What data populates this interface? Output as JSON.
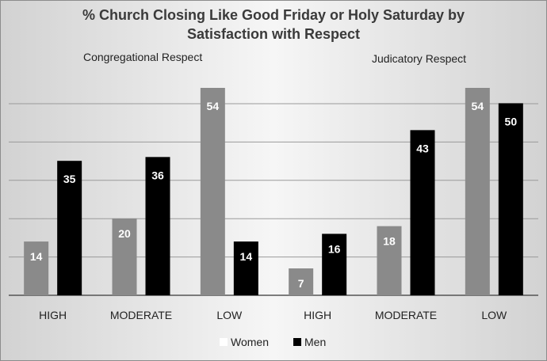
{
  "chart_data": {
    "type": "bar",
    "title_lines": [
      "% Church Closing Like Good Friday or Holy Saturday by",
      "Satisfaction with Respect"
    ],
    "group_labels": [
      "Congregational Respect",
      "Judicatory Respect"
    ],
    "categories": [
      "HIGH",
      "MODERATE",
      "LOW",
      "HIGH",
      "MODERATE",
      "LOW"
    ],
    "series": [
      {
        "name": "Women",
        "values": [
          14,
          20,
          54,
          7,
          18,
          54
        ],
        "color": "#8a8a8a"
      },
      {
        "name": "Men",
        "values": [
          35,
          36,
          14,
          16,
          43,
          50
        ],
        "color": "#000000"
      }
    ],
    "ylim": [
      0,
      54
    ],
    "grid": true,
    "legend_position": "bottom",
    "legend": [
      {
        "label": "Women",
        "swatch_color": "#ffffff"
      },
      {
        "label": "Men",
        "swatch_color": "#000000"
      }
    ]
  }
}
